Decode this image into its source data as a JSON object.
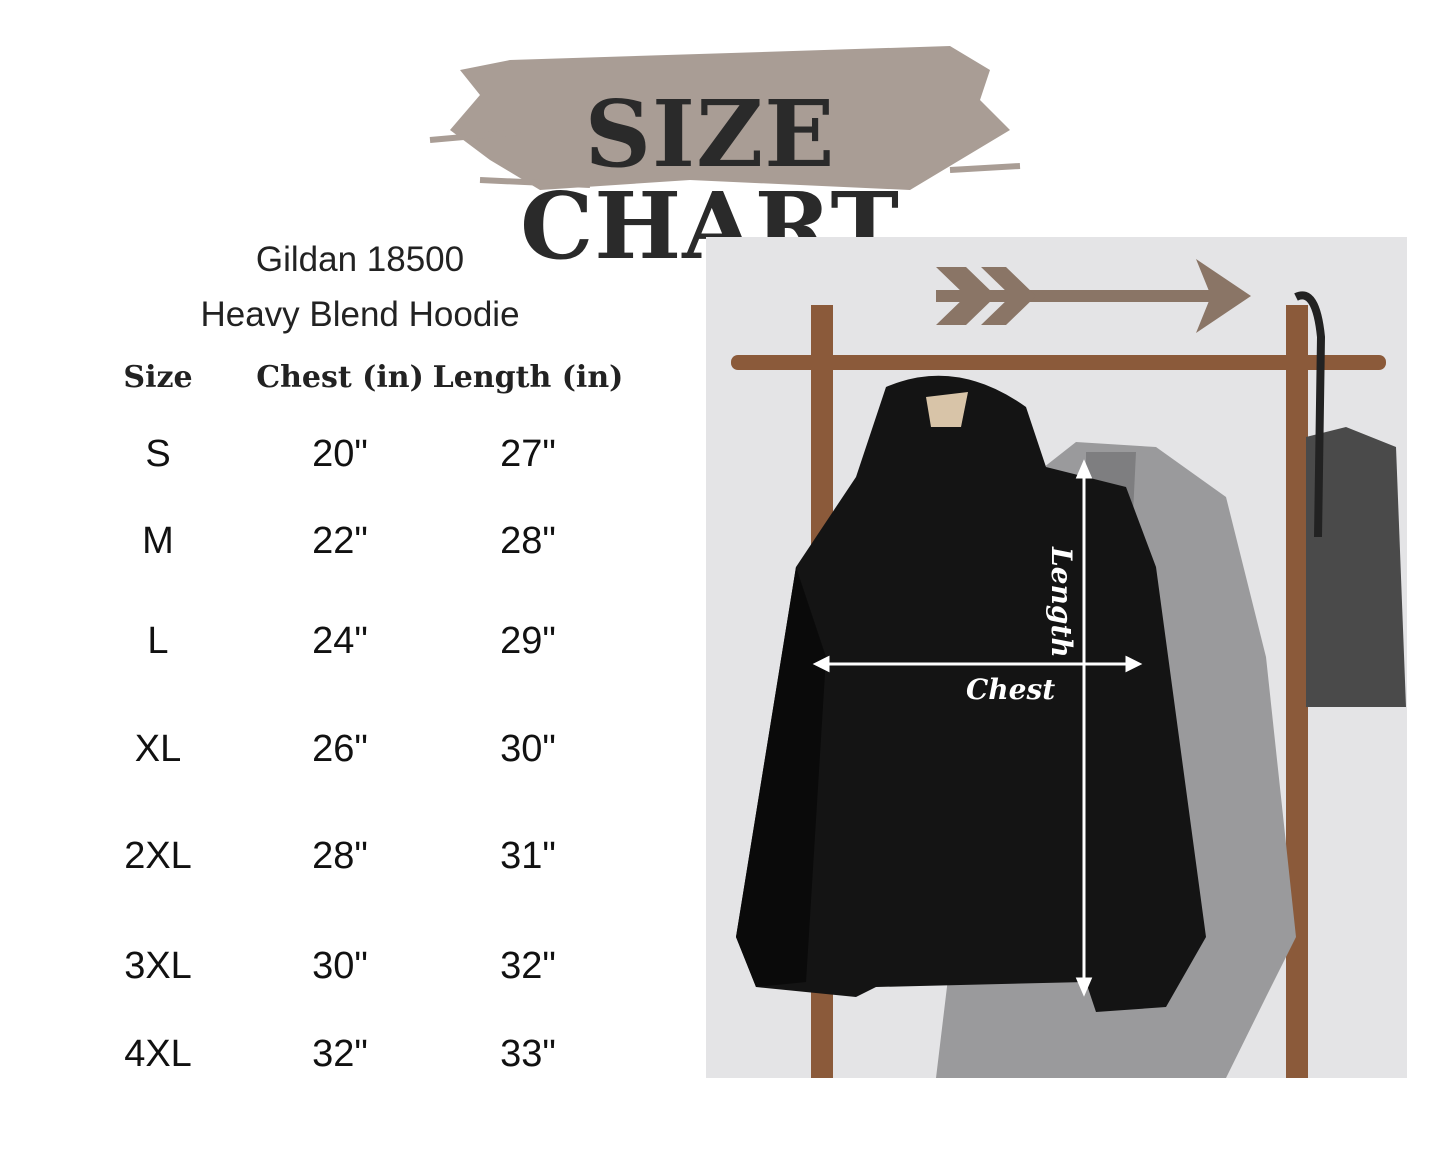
{
  "title": "SIZE CHART",
  "product": {
    "line1": "Gildan 18500",
    "line2": "Heavy Blend Hoodie"
  },
  "table": {
    "headers": [
      "Size",
      "Chest (in)",
      "Length (in)"
    ],
    "rows": [
      [
        "S",
        "20\"",
        "27\""
      ],
      [
        "M",
        "22\"",
        "28\""
      ],
      [
        "L",
        "24\"",
        "29\""
      ],
      [
        "XL",
        "26\"",
        "30\""
      ],
      [
        "2XL",
        "28\"",
        "31\""
      ],
      [
        "3XL",
        "30\"",
        "32\""
      ],
      [
        "4XL",
        "32\"",
        "33\""
      ]
    ]
  },
  "photo": {
    "length_label": "Length",
    "chest_label": "Chest"
  },
  "colors": {
    "brush": "#a99d95",
    "title": "#2a2a2a",
    "hoodie": "#141414"
  }
}
